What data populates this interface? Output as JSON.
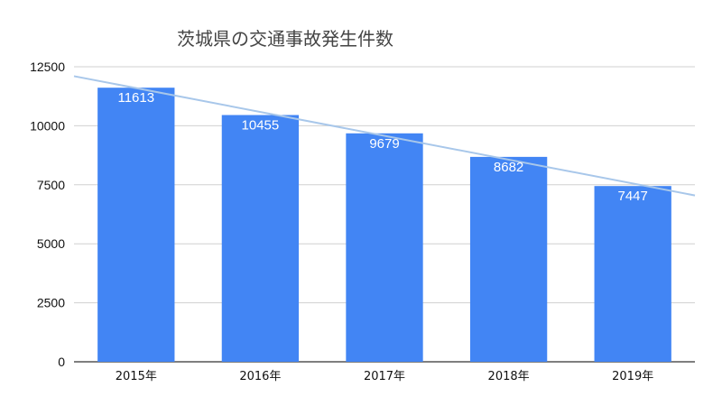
{
  "chart_data": {
    "type": "bar",
    "title": "茨城県の交通事故発生件数",
    "xlabel": "",
    "ylabel": "",
    "categories": [
      "2015年",
      "2016年",
      "2017年",
      "2018年",
      "2019年"
    ],
    "values": [
      11613,
      10455,
      9679,
      8682,
      7447
    ],
    "ylim": [
      0,
      12500
    ],
    "yticks": [
      0,
      2500,
      5000,
      7500,
      10000,
      12500
    ],
    "data_labels": true,
    "trendline": {
      "type": "linear",
      "color": "#a8c7ea"
    },
    "grid": true,
    "legend": "none",
    "colors": {
      "bar": "#4285f4",
      "grid": "#d0d0d0",
      "trendline": "#a8c7ea"
    }
  }
}
